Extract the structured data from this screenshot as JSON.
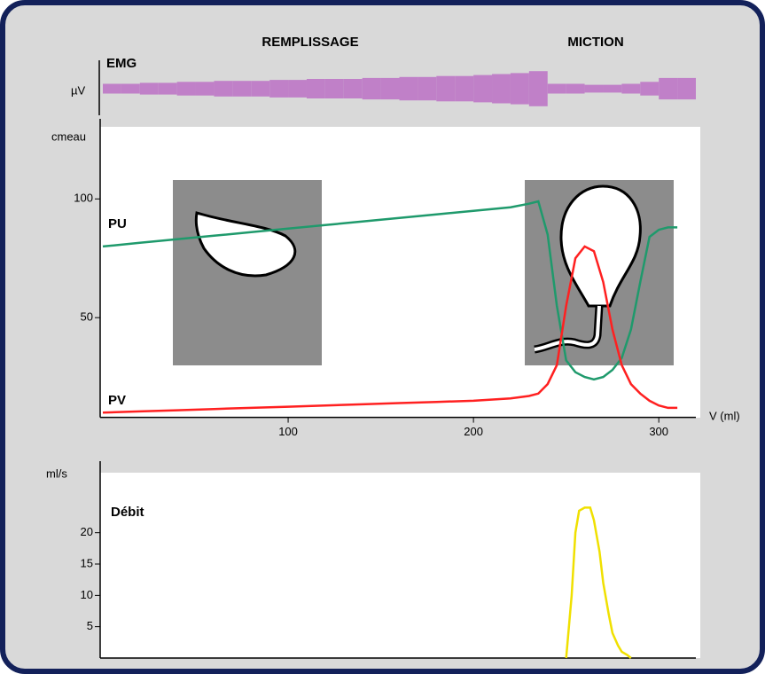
{
  "chart_data": [
    {
      "type": "envelope",
      "label": "EMG",
      "unit_label": "µV",
      "color": "#c080c8",
      "annotations": [
        "REMPLISSAGE",
        "MICTION"
      ],
      "xlim": [
        0,
        320
      ],
      "ylim": [
        0,
        20
      ],
      "x": [
        0,
        10,
        20,
        30,
        40,
        50,
        60,
        70,
        80,
        90,
        100,
        110,
        120,
        130,
        140,
        150,
        160,
        170,
        180,
        190,
        200,
        210,
        220,
        230,
        240,
        250,
        260,
        270,
        280,
        290,
        300,
        310
      ],
      "values": [
        5,
        5,
        6,
        6,
        7,
        7,
        8,
        8,
        8,
        9,
        9,
        10,
        10,
        10,
        11,
        11,
        12,
        12,
        13,
        13,
        14,
        15,
        16,
        18,
        5,
        5,
        4,
        4,
        5,
        7,
        11,
        11
      ]
    },
    {
      "type": "line",
      "y_label": "cmeau",
      "x_label": "V (ml)",
      "xlim": [
        0,
        320
      ],
      "xticks": [
        100,
        200,
        300
      ],
      "ylim": [
        8,
        130
      ],
      "yticks": [
        50,
        100
      ],
      "x": [
        0,
        20,
        40,
        60,
        80,
        100,
        120,
        140,
        160,
        180,
        200,
        220,
        230,
        235,
        240,
        245,
        250,
        255,
        260,
        265,
        270,
        275,
        280,
        285,
        290,
        295,
        300,
        305,
        310
      ],
      "series": [
        {
          "name": "PU",
          "color": "#1f9a6c",
          "values": [
            80,
            81.5,
            83,
            84.5,
            86,
            87.5,
            89,
            90.5,
            92,
            93.5,
            95,
            96.5,
            98,
            99,
            85,
            55,
            32,
            27,
            25,
            24,
            25,
            28,
            33,
            45,
            65,
            84,
            87,
            88,
            88
          ]
        },
        {
          "name": "PV",
          "color": "#ff2020",
          "values": [
            10,
            10.5,
            11,
            11.5,
            12,
            12.5,
            13,
            13.5,
            14,
            14.5,
            15,
            16,
            17,
            18,
            22,
            30,
            55,
            75,
            80,
            78,
            65,
            45,
            30,
            22,
            18,
            15,
            13,
            12,
            12
          ]
        }
      ]
    },
    {
      "type": "line",
      "y_label": "ml/s",
      "xlim": [
        0,
        320
      ],
      "ylim": [
        0,
        30
      ],
      "yticks": [
        5,
        10,
        15,
        20
      ],
      "x": [
        250,
        253,
        255,
        257,
        260,
        263,
        265,
        268,
        270,
        273,
        275,
        278,
        280,
        283,
        285
      ],
      "series": [
        {
          "name": "Débit",
          "color": "#f0e000",
          "values": [
            0,
            10,
            20,
            23.5,
            24,
            24,
            22,
            17,
            12,
            7,
            4,
            2,
            1,
            0.5,
            0
          ]
        }
      ]
    }
  ]
}
